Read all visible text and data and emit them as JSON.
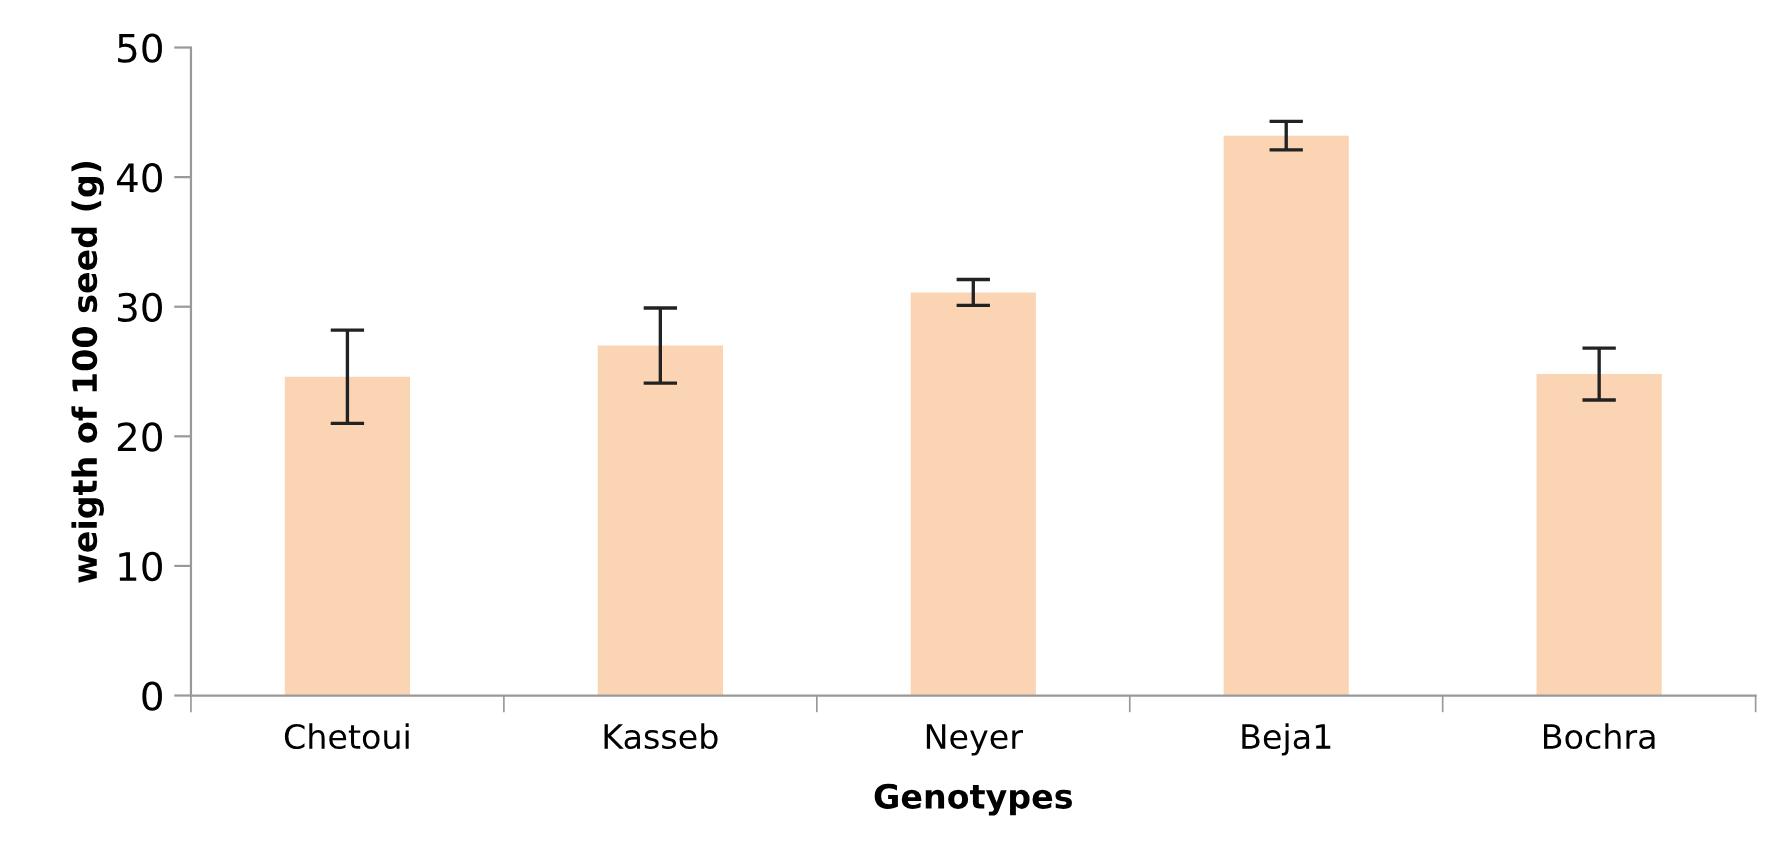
{
  "chart_data": {
    "type": "bar",
    "xlabel": "Genotypes",
    "ylabel": "weigth of 100 seed (g)",
    "categories": [
      "Chetoui",
      "Kasseb",
      "Neyer",
      "Beja1",
      "Bochra"
    ],
    "values": [
      24.6,
      27.0,
      31.1,
      43.2,
      24.8
    ],
    "errors": [
      3.6,
      2.9,
      1.0,
      1.1,
      2.0
    ],
    "color": "#fad4b3",
    "ylim": [
      0,
      50
    ],
    "yticks": [
      0,
      10,
      20,
      30,
      40,
      50
    ],
    "grid": false,
    "legend": false
  }
}
